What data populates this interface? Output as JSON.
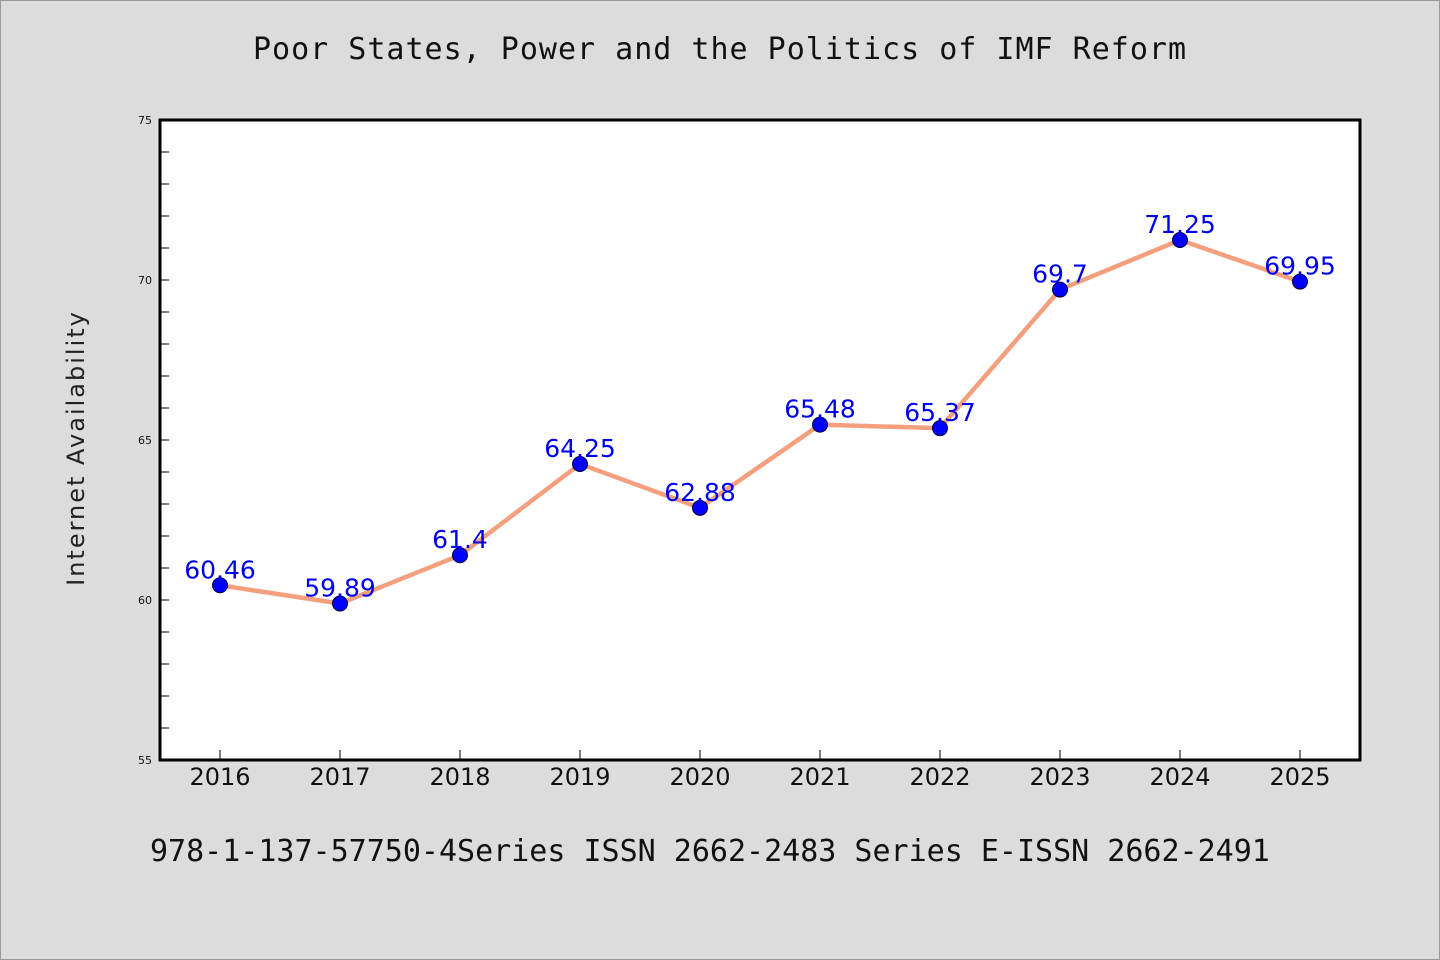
{
  "chart_data": {
    "type": "line",
    "title": "Poor States, Power and the Politics of IMF Reform",
    "xlabel": "",
    "ylabel": "Internet Availability",
    "categories": [
      "2016",
      "2017",
      "2018",
      "2019",
      "2020",
      "2021",
      "2022",
      "2023",
      "2024",
      "2025"
    ],
    "series": [
      {
        "values": [
          60.46,
          59.89,
          61.4,
          64.25,
          62.88,
          65.48,
          65.37,
          69.7,
          71.25,
          69.95
        ],
        "labels": [
          "60.46",
          "59.89",
          "61.4",
          "64.25",
          "62.88",
          "65.48",
          "65.37",
          "69.7",
          "71.25",
          "69.95"
        ]
      }
    ],
    "ylim": [
      55,
      75
    ],
    "yticks": [
      55,
      60,
      65,
      70,
      75
    ],
    "ytick_labels": [
      "55",
      "60",
      "65",
      "70",
      "75"
    ],
    "grid": false,
    "legend": "none",
    "line_color": "#f4a07f",
    "marker_color": "#0000ff",
    "label_color": "#0000ee"
  },
  "footer": {
    "text": "978-1-137-57750-4Series ISSN 2662-2483 Series E-ISSN 2662-2491"
  }
}
